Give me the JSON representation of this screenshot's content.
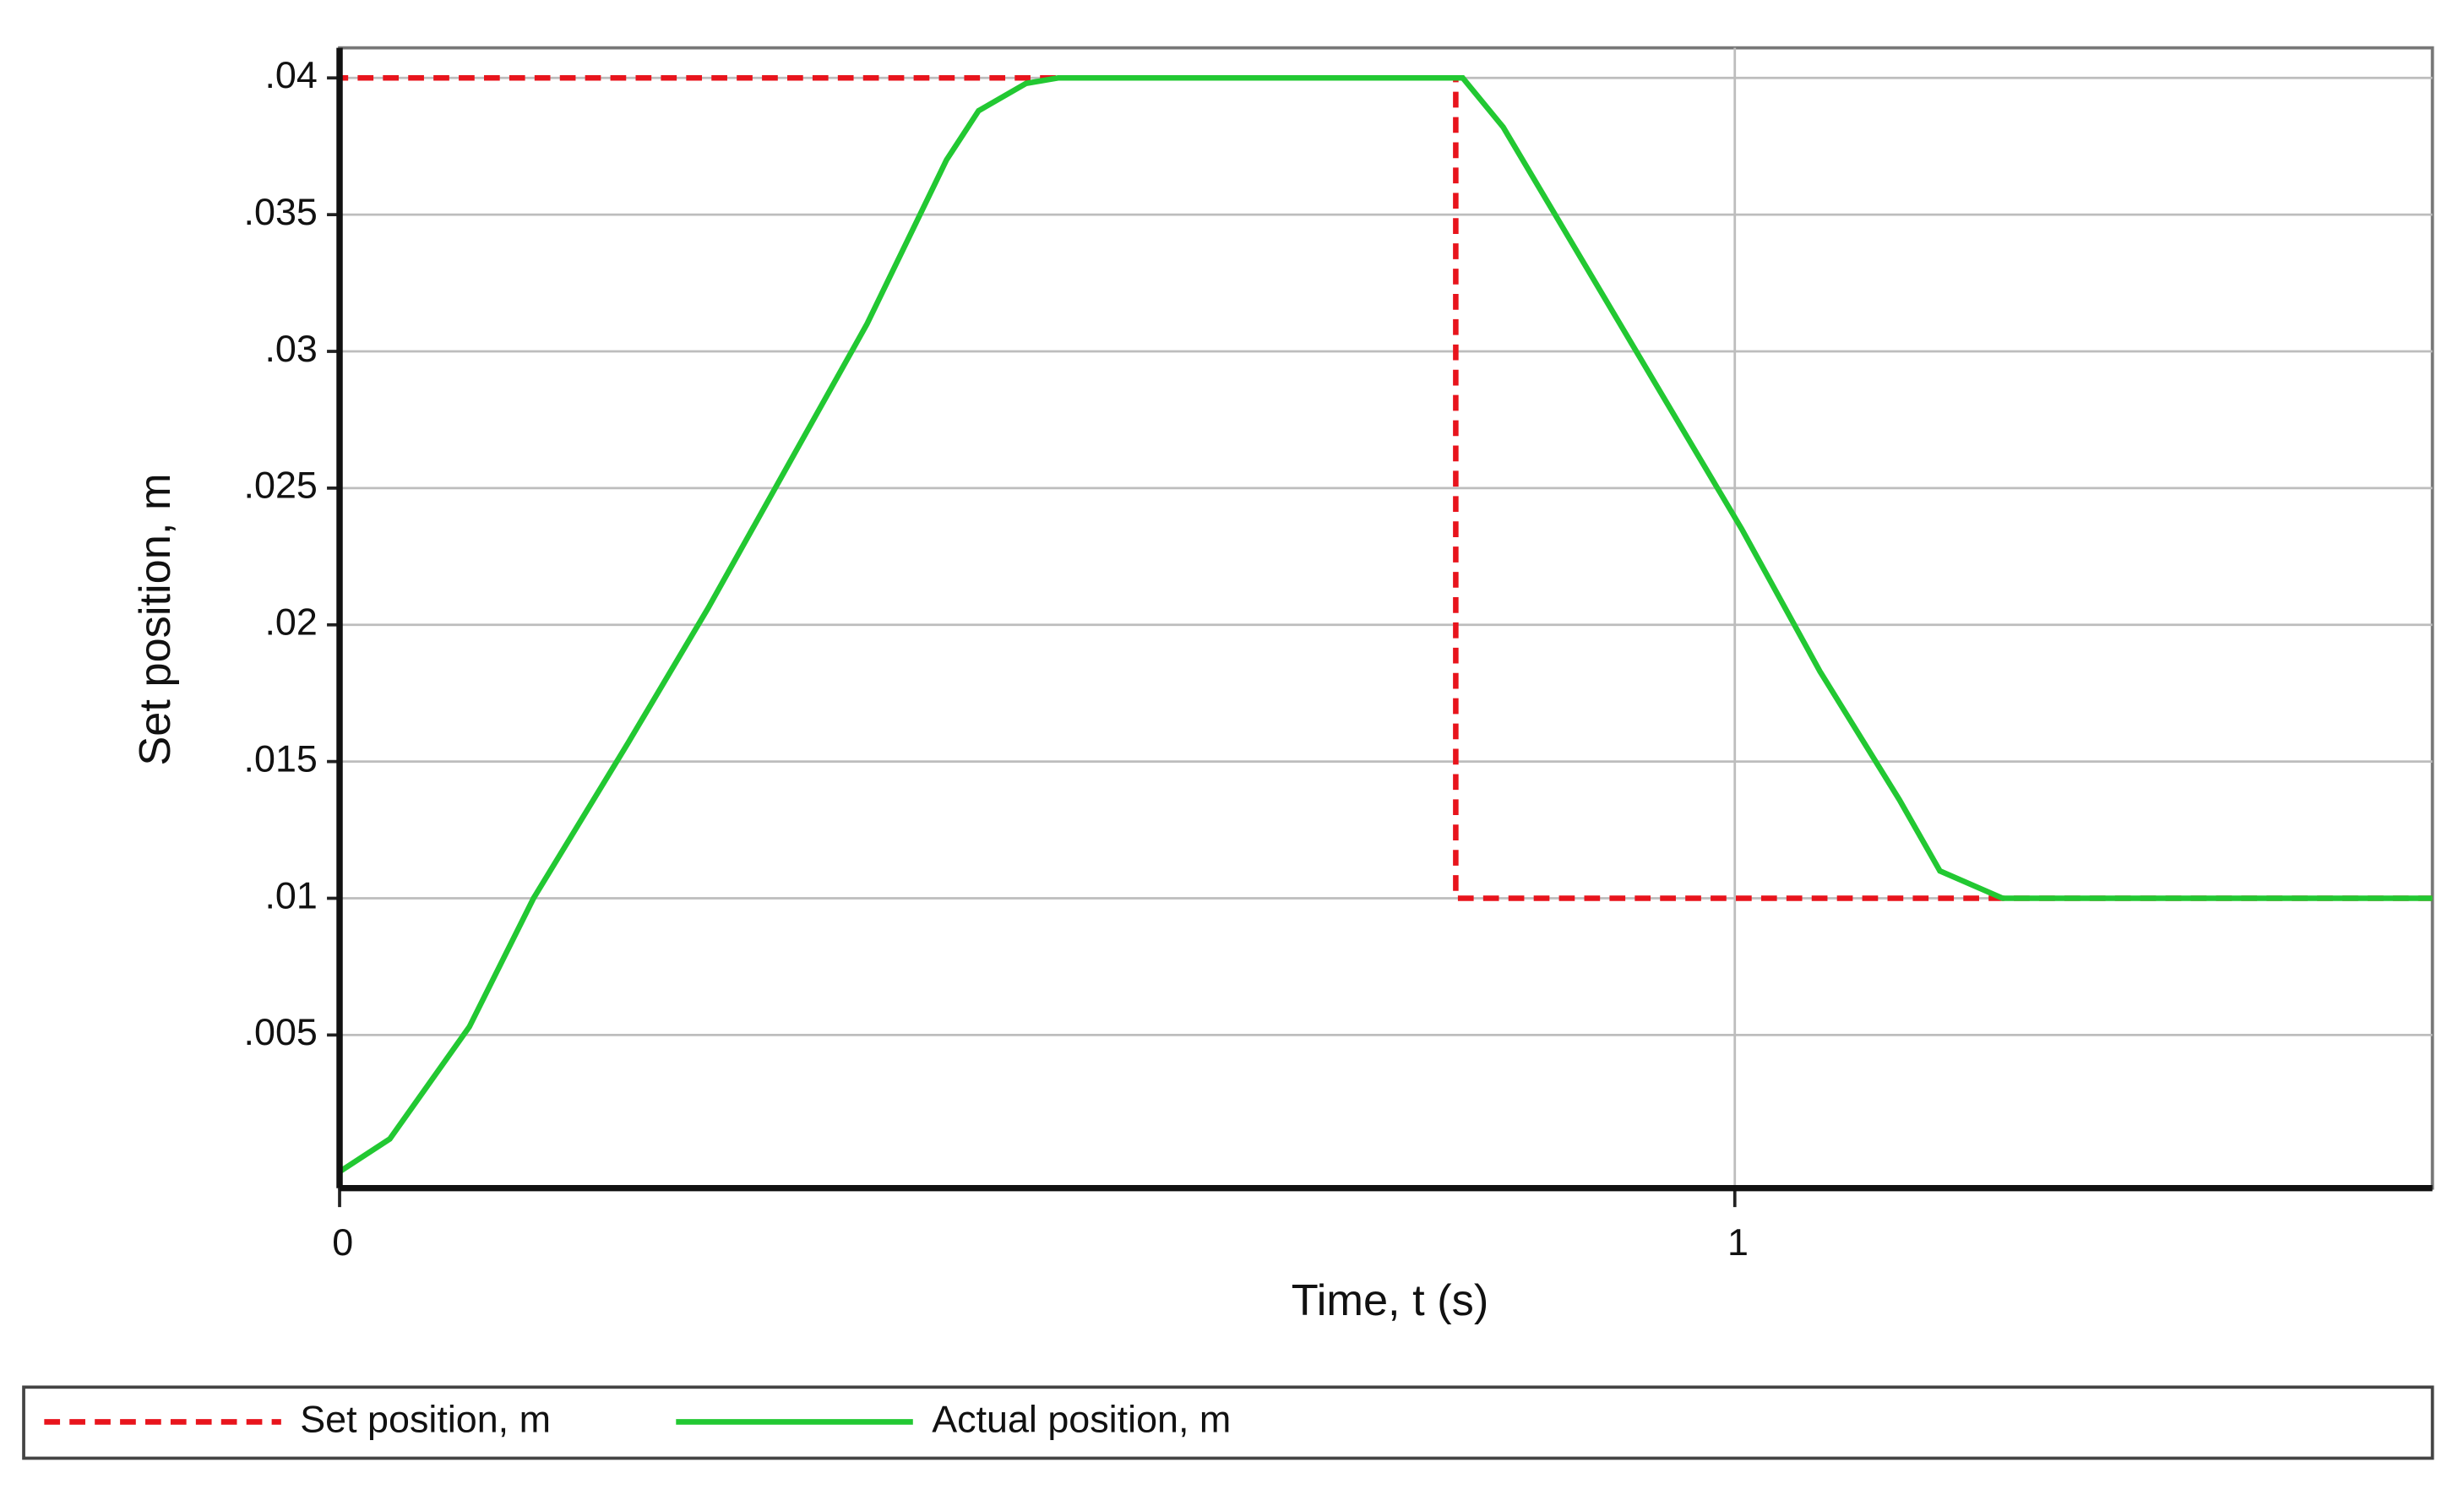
{
  "chart_data": {
    "type": "line",
    "xlabel": "Time, t (s)",
    "ylabel": "Set position, m",
    "xlim": [
      0,
      1.5
    ],
    "ylim": [
      -0.0006,
      0.0411
    ],
    "xticks": [
      0,
      1
    ],
    "yticks": [
      {
        "value": 0.005,
        "label": ".005"
      },
      {
        "value": 0.01,
        "label": ".01"
      },
      {
        "value": 0.015,
        "label": ".015"
      },
      {
        "value": 0.02,
        "label": ".02"
      },
      {
        "value": 0.025,
        "label": ".025"
      },
      {
        "value": 0.03,
        "label": ".03"
      },
      {
        "value": 0.035,
        "label": ".035"
      },
      {
        "value": 0.04,
        "label": ".04"
      }
    ],
    "grid": true,
    "legend": "bottom",
    "series": [
      {
        "name": "Set position, m",
        "color": "#e8141c",
        "dashed": true,
        "x": [
          0,
          0,
          0.8,
          0.8,
          1.5
        ],
        "values": [
          0,
          0.04,
          0.04,
          0.01,
          0.01
        ]
      },
      {
        "name": "Actual position, m",
        "color": "#22c832",
        "dashed": false,
        "x": [
          0,
          0.036,
          0.093,
          0.139,
          0.207,
          0.264,
          0.321,
          0.378,
          0.435,
          0.458,
          0.492,
          0.515,
          0.805,
          0.834,
          0.891,
          0.948,
          1.005,
          1.061,
          1.118,
          1.147,
          1.192,
          1.5
        ],
        "values": [
          0,
          0.0012,
          0.0053,
          0.01,
          0.0157,
          0.0206,
          0.0258,
          0.031,
          0.037,
          0.0388,
          0.0398,
          0.04,
          0.04,
          0.0382,
          0.0333,
          0.0284,
          0.0235,
          0.0183,
          0.0136,
          0.011,
          0.01,
          0.01
        ]
      }
    ]
  }
}
